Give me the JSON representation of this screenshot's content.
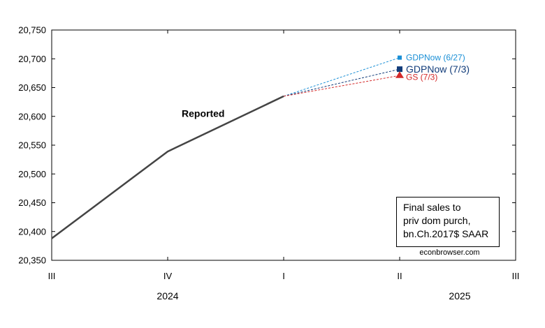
{
  "chart_data": {
    "type": "line",
    "title": "",
    "xlabel": "",
    "ylabel": "",
    "x": [
      "2024 III",
      "2024 IV",
      "2025 I",
      "2025 II",
      "2025 III"
    ],
    "x_tick_labels": [
      "III",
      "IV",
      "I",
      "II",
      "III"
    ],
    "year_labels": [
      "2024",
      "2025"
    ],
    "ylim": [
      20350,
      20750
    ],
    "y_ticks": [
      20350,
      20400,
      20450,
      20500,
      20550,
      20600,
      20650,
      20700,
      20750
    ],
    "y_tick_labels": [
      "20,350",
      "20,400",
      "20,450",
      "20,500",
      "20,550",
      "20,600",
      "20,650",
      "20,700",
      "20,750"
    ],
    "grid": false,
    "series": [
      {
        "name": "Reported",
        "x": [
          "2024 III",
          "2024 IV",
          "2025 I"
        ],
        "values": [
          20388,
          20539,
          20635
        ],
        "color": "#444444",
        "style": "solid"
      },
      {
        "name": "GDPNow (6/27)",
        "x": [
          "2025 I",
          "2025 II"
        ],
        "values": [
          20635,
          20702
        ],
        "color": "#1a8fd6",
        "style": "dashed",
        "marker": "square"
      },
      {
        "name": "GDPNow (7/3)",
        "x": [
          "2025 I",
          "2025 II"
        ],
        "values": [
          20635,
          20682
        ],
        "color": "#123c7a",
        "style": "dashed",
        "marker": "square"
      },
      {
        "name": "GS (7/3)",
        "x": [
          "2025 I",
          "2025 II"
        ],
        "values": [
          20635,
          20671
        ],
        "color": "#d42a2a",
        "style": "dashed",
        "marker": "triangle"
      }
    ],
    "annotations": {
      "reported": "Reported",
      "gdpnow_627": "GDPNow (6/27)",
      "gdpnow_73": "GDPNow (7/3)",
      "gs_73": "GS (7/3)"
    },
    "legend_box": [
      "Final sales to",
      "priv dom purch,",
      "bn.Ch.2017$ SAAR"
    ],
    "credit": "econbrowser.com"
  }
}
